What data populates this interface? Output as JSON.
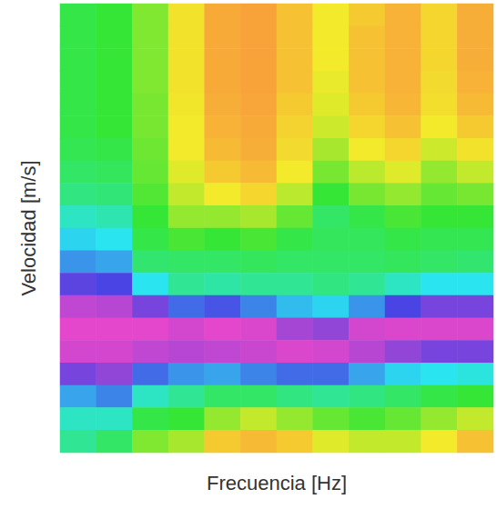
{
  "chart_data": {
    "type": "heatmap",
    "x_label": "Frecuencia [Hz]",
    "y_label": "Velocidad [m/s]",
    "tick_labels": false,
    "zlim": [
      0,
      1
    ],
    "cells": [
      [
        0.42,
        0.4,
        0.32,
        0.18,
        0.04,
        0.02,
        0.1,
        0.2,
        0.12,
        0.06,
        0.15,
        0.05
      ],
      [
        0.42,
        0.4,
        0.32,
        0.18,
        0.04,
        0.02,
        0.1,
        0.2,
        0.1,
        0.06,
        0.15,
        0.05
      ],
      [
        0.42,
        0.4,
        0.32,
        0.18,
        0.04,
        0.02,
        0.1,
        0.2,
        0.1,
        0.06,
        0.15,
        0.05
      ],
      [
        0.42,
        0.4,
        0.32,
        0.18,
        0.04,
        0.02,
        0.1,
        0.21,
        0.1,
        0.06,
        0.16,
        0.06
      ],
      [
        0.42,
        0.4,
        0.33,
        0.19,
        0.05,
        0.03,
        0.12,
        0.22,
        0.12,
        0.07,
        0.17,
        0.08
      ],
      [
        0.42,
        0.4,
        0.33,
        0.2,
        0.06,
        0.04,
        0.14,
        0.24,
        0.15,
        0.1,
        0.2,
        0.12
      ],
      [
        0.43,
        0.42,
        0.34,
        0.2,
        0.08,
        0.05,
        0.16,
        0.28,
        0.2,
        0.15,
        0.24,
        0.18
      ],
      [
        0.45,
        0.44,
        0.35,
        0.22,
        0.12,
        0.08,
        0.2,
        0.33,
        0.26,
        0.22,
        0.3,
        0.25
      ],
      [
        0.48,
        0.47,
        0.37,
        0.25,
        0.2,
        0.15,
        0.26,
        0.4,
        0.33,
        0.3,
        0.35,
        0.33
      ],
      [
        0.55,
        0.53,
        0.4,
        0.3,
        0.3,
        0.28,
        0.35,
        0.45,
        0.42,
        0.38,
        0.4,
        0.4
      ],
      [
        0.62,
        0.6,
        0.42,
        0.38,
        0.4,
        0.38,
        0.42,
        0.44,
        0.44,
        0.42,
        0.43,
        0.43
      ],
      [
        0.7,
        0.68,
        0.46,
        0.45,
        0.45,
        0.44,
        0.45,
        0.45,
        0.45,
        0.44,
        0.45,
        0.46
      ],
      [
        0.82,
        0.8,
        0.6,
        0.5,
        0.52,
        0.5,
        0.5,
        0.48,
        0.5,
        0.55,
        0.6,
        0.6
      ],
      [
        0.93,
        0.92,
        0.85,
        0.75,
        0.78,
        0.72,
        0.65,
        0.62,
        0.7,
        0.8,
        0.85,
        0.85
      ],
      [
        0.97,
        0.97,
        0.97,
        0.95,
        0.97,
        0.96,
        0.9,
        0.88,
        0.95,
        0.96,
        0.96,
        0.96
      ],
      [
        0.95,
        0.95,
        0.93,
        0.92,
        0.93,
        0.94,
        0.96,
        0.95,
        0.92,
        0.88,
        0.85,
        0.85
      ],
      [
        0.85,
        0.88,
        0.75,
        0.7,
        0.68,
        0.72,
        0.75,
        0.75,
        0.68,
        0.62,
        0.6,
        0.58
      ],
      [
        0.68,
        0.72,
        0.55,
        0.5,
        0.45,
        0.45,
        0.48,
        0.5,
        0.48,
        0.45,
        0.42,
        0.4
      ],
      [
        0.55,
        0.55,
        0.42,
        0.4,
        0.3,
        0.25,
        0.3,
        0.35,
        0.38,
        0.35,
        0.3,
        0.25
      ],
      [
        0.5,
        0.45,
        0.32,
        0.28,
        0.12,
        0.08,
        0.12,
        0.22,
        0.25,
        0.25,
        0.2,
        0.1
      ]
    ]
  }
}
